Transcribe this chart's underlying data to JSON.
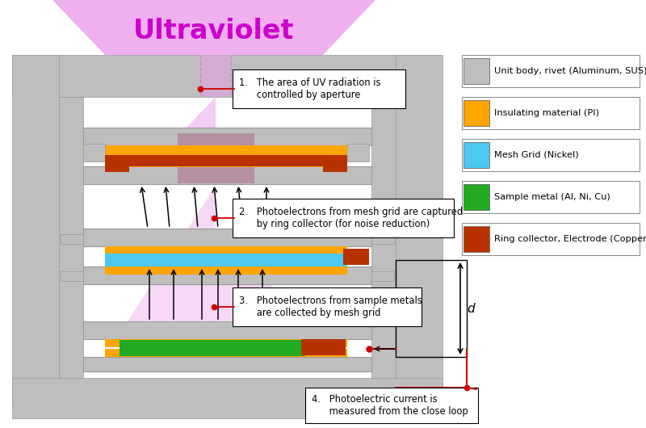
{
  "title": "Ultraviolet",
  "title_color": "#CC00CC",
  "bg_color": "#FFFFFF",
  "colors": {
    "gray": "#BEBEBE",
    "gray_dark": "#A8A8A8",
    "gray_light": "#D3D3D3",
    "yellow": "#FFA500",
    "blue": "#4DC8F0",
    "green": "#22AA22",
    "copper": "#B83200",
    "pink_light": "#F0C0F0",
    "pink_medium": "#E090E0",
    "pink_beam": "#D070D0",
    "red": "#CC0000",
    "black": "#000000",
    "white": "#FFFFFF"
  },
  "legend_items": [
    {
      "color": "#BEBEBE",
      "label": "Unit body, rivet (Aluminum, SUS)"
    },
    {
      "color": "#FFA500",
      "label": "Insulating material (PI)"
    },
    {
      "color": "#4DC8F0",
      "label": "Mesh Grid (Nickel)"
    },
    {
      "color": "#22AA22",
      "label": "Sample metal (Al, Ni, Cu)"
    },
    {
      "color": "#B83200",
      "label": "Ring collector, Electrode (Copper)"
    }
  ]
}
